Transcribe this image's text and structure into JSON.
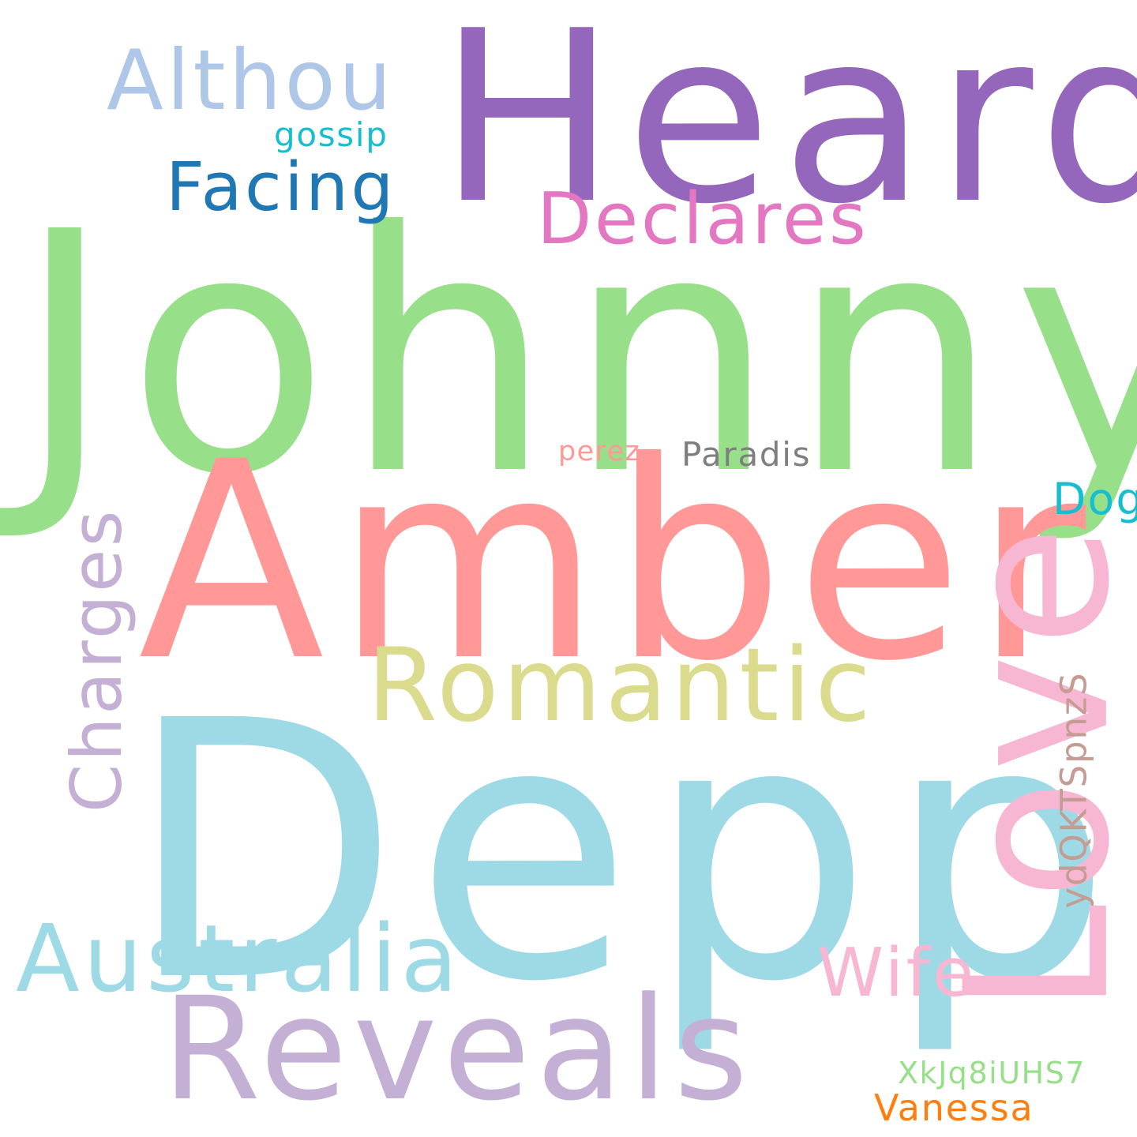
{
  "cloud": {
    "background": "#ffffff",
    "words": [
      {
        "id": "johnny",
        "text": "Johnny",
        "color": "#98df8a",
        "orientation": "horizontal"
      },
      {
        "id": "depp",
        "text": "Depp",
        "color": "#9edae5",
        "orientation": "horizontal"
      },
      {
        "id": "amber",
        "text": "Amber",
        "color": "#ff9896",
        "orientation": "horizontal"
      },
      {
        "id": "heard",
        "text": "Heard",
        "color": "#9467bd",
        "orientation": "horizontal"
      },
      {
        "id": "love",
        "text": "Love",
        "color": "#f7b6d2",
        "orientation": "vertical"
      },
      {
        "id": "reveals",
        "text": "Reveals",
        "color": "#c5b0d5",
        "orientation": "horizontal"
      },
      {
        "id": "romantic",
        "text": "Romantic",
        "color": "#dbdb8d",
        "orientation": "horizontal"
      },
      {
        "id": "australia",
        "text": "Australia",
        "color": "#9edae5",
        "orientation": "horizontal"
      },
      {
        "id": "althou",
        "text": "Althou",
        "color": "#aec7e8",
        "orientation": "horizontal"
      },
      {
        "id": "declares",
        "text": "Declares",
        "color": "#e377c2",
        "orientation": "horizontal"
      },
      {
        "id": "charges",
        "text": "Charges",
        "color": "#c5b0d5",
        "orientation": "vertical"
      },
      {
        "id": "facing",
        "text": "Facing",
        "color": "#1f77b4",
        "orientation": "horizontal"
      },
      {
        "id": "wife",
        "text": "Wife",
        "color": "#f7b6d2",
        "orientation": "horizontal"
      },
      {
        "id": "dog",
        "text": "Dog",
        "color": "#17becf",
        "orientation": "horizontal"
      },
      {
        "id": "ydq",
        "text": "ydQKTSpnzS",
        "color": "#c49c94",
        "orientation": "vertical"
      },
      {
        "id": "vanessa",
        "text": "Vanessa",
        "color": "#ff7f0e",
        "orientation": "horizontal"
      },
      {
        "id": "paradis",
        "text": "Paradis",
        "color": "#7f7f7f",
        "orientation": "horizontal"
      },
      {
        "id": "gossip",
        "text": "gossip",
        "color": "#17becf",
        "orientation": "horizontal"
      },
      {
        "id": "xkjq",
        "text": "XkJq8iUHS7",
        "color": "#98df8a",
        "orientation": "horizontal"
      },
      {
        "id": "perez",
        "text": "perez",
        "color": "#ff9896",
        "orientation": "horizontal"
      }
    ]
  }
}
